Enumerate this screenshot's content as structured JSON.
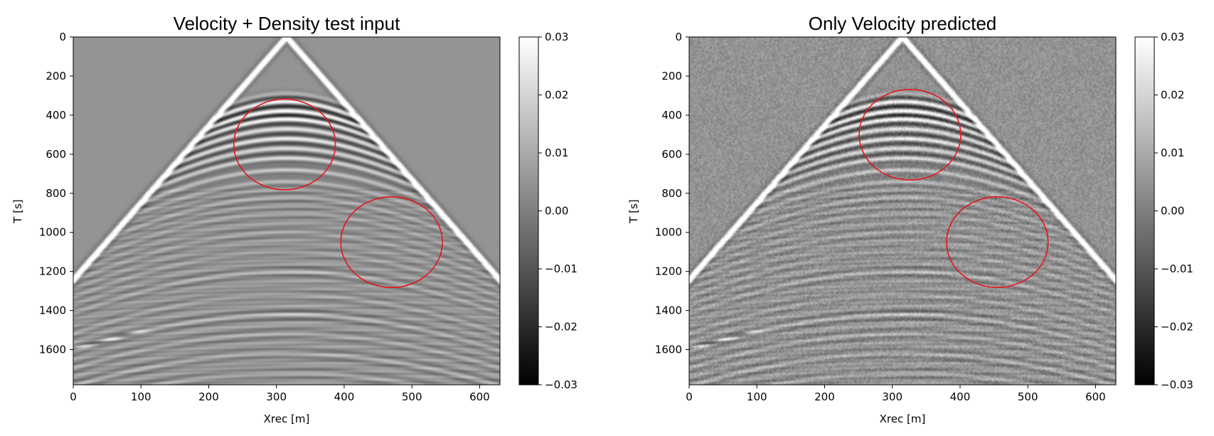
{
  "chart_data": [
    {
      "type": "heatmap",
      "title": "Velocity + Density test input",
      "xlabel": "Xrec [m]",
      "ylabel": "T [s]",
      "xlim": [
        0,
        630
      ],
      "ylim": [
        1780,
        0
      ],
      "x_ticks": [
        0,
        100,
        200,
        300,
        400,
        500,
        600
      ],
      "y_ticks": [
        0,
        200,
        400,
        600,
        800,
        1000,
        1200,
        1400,
        1600
      ],
      "colormap": "gray",
      "color_range": [
        -0.03,
        0.03
      ],
      "colorbar_ticks": [
        "0.03",
        "0.02",
        "0.01",
        "0.00",
        "−0.01",
        "−0.02",
        "−0.03"
      ],
      "apex": {
        "x": 315,
        "t": 0
      },
      "direct_wave_slope_t_per_m": 3.95,
      "noise_level": 0.0,
      "annotations": [
        {
          "shape": "ellipse",
          "color": "#e8141c",
          "cx": 312,
          "cy": 550,
          "rx": 75,
          "ry": 232
        },
        {
          "shape": "ellipse",
          "color": "#e8141c",
          "cx": 470,
          "cy": 1050,
          "rx": 75,
          "ry": 232
        }
      ]
    },
    {
      "type": "heatmap",
      "title": "Only Velocity predicted",
      "xlabel": "Xrec [m]",
      "ylabel": "T [s]",
      "xlim": [
        0,
        630
      ],
      "ylim": [
        1780,
        0
      ],
      "x_ticks": [
        0,
        100,
        200,
        300,
        400,
        500,
        600
      ],
      "y_ticks": [
        0,
        200,
        400,
        600,
        800,
        1000,
        1200,
        1400,
        1600
      ],
      "colormap": "gray",
      "color_range": [
        -0.03,
        0.03
      ],
      "colorbar_ticks": [
        "0.03",
        "0.02",
        "0.01",
        "0.00",
        "−0.01",
        "−0.02",
        "−0.03"
      ],
      "apex": {
        "x": 315,
        "t": 0
      },
      "direct_wave_slope_t_per_m": 3.95,
      "noise_level": 0.004,
      "annotations": [
        {
          "shape": "ellipse",
          "color": "#e8141c",
          "cx": 326,
          "cy": 500,
          "rx": 75,
          "ry": 232
        },
        {
          "shape": "ellipse",
          "color": "#e8141c",
          "cx": 455,
          "cy": 1050,
          "rx": 75,
          "ry": 232
        }
      ]
    }
  ]
}
